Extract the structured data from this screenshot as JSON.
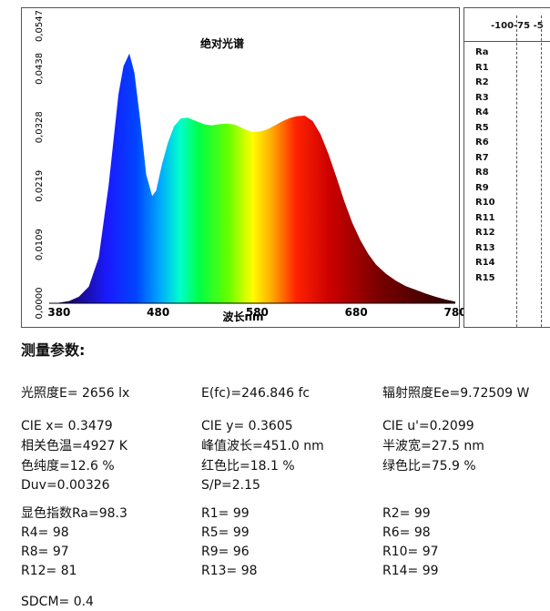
{
  "chart_data": {
    "type": "area",
    "title": "绝对光谱",
    "xlabel": "波长nm",
    "ylabel": "",
    "xlim": [
      370,
      780
    ],
    "ylim": [
      0,
      0.0547
    ],
    "x_ticks": [
      "380",
      "480",
      "580",
      "680",
      "780"
    ],
    "y_ticks": [
      "0,0000",
      "0,0109",
      "0,0219",
      "0,0328",
      "0,0438",
      "0,0547"
    ],
    "points": [
      [
        380,
        0.0001
      ],
      [
        390,
        0.0004
      ],
      [
        400,
        0.0012
      ],
      [
        410,
        0.0031
      ],
      [
        420,
        0.0085
      ],
      [
        430,
        0.022
      ],
      [
        440,
        0.039
      ],
      [
        445,
        0.0442
      ],
      [
        451,
        0.0466
      ],
      [
        456,
        0.043
      ],
      [
        462,
        0.034
      ],
      [
        468,
        0.024
      ],
      [
        474,
        0.02
      ],
      [
        478,
        0.021
      ],
      [
        484,
        0.026
      ],
      [
        490,
        0.03
      ],
      [
        496,
        0.033
      ],
      [
        503,
        0.0345
      ],
      [
        510,
        0.0346
      ],
      [
        518,
        0.034
      ],
      [
        526,
        0.0334
      ],
      [
        534,
        0.0332
      ],
      [
        542,
        0.0334
      ],
      [
        550,
        0.0335
      ],
      [
        558,
        0.0333
      ],
      [
        566,
        0.0326
      ],
      [
        574,
        0.032
      ],
      [
        582,
        0.032
      ],
      [
        590,
        0.0324
      ],
      [
        598,
        0.0332
      ],
      [
        606,
        0.034
      ],
      [
        614,
        0.0346
      ],
      [
        620,
        0.0349
      ],
      [
        628,
        0.035
      ],
      [
        636,
        0.034
      ],
      [
        644,
        0.0315
      ],
      [
        652,
        0.0278
      ],
      [
        660,
        0.0235
      ],
      [
        668,
        0.019
      ],
      [
        676,
        0.015
      ],
      [
        684,
        0.0118
      ],
      [
        692,
        0.0092
      ],
      [
        700,
        0.0072
      ],
      [
        710,
        0.0055
      ],
      [
        720,
        0.0042
      ],
      [
        730,
        0.0032
      ],
      [
        740,
        0.0025
      ],
      [
        750,
        0.0018
      ],
      [
        760,
        0.0012
      ],
      [
        770,
        0.0007
      ],
      [
        780,
        0.0003
      ]
    ]
  },
  "cri_panel": {
    "axis_top_labels": "-100-75  -5",
    "row_labels": [
      "Ra",
      "R1",
      "R2",
      "R3",
      "R4",
      "R5",
      "R6",
      "R7",
      "R8",
      "R9",
      "R10",
      "R11",
      "R12",
      "R13",
      "R14",
      "R15"
    ]
  },
  "section_title": "测量参数:",
  "params": {
    "illuminance": "光照度E=  2656 lx",
    "fc": "E(fc)=246.846 fc",
    "irradiance": "辐射照度Ee=9.72509 W",
    "cie_x": "CIE x= 0.3479",
    "cie_y": "CIE y= 0.3605",
    "cie_u": "CIE u'=0.2099",
    "cct": "相关色温=4927 K",
    "peak": "峰值波长=451.0 nm",
    "half_width": "半波宽=27.5 nm",
    "purity": "色纯度=12.6 %",
    "red_ratio": "红色比=18.1 %",
    "green_ratio": "绿色比=75.9 %",
    "duv": "Duv=0.00326",
    "sp": "S/P=2.15",
    "ra": "显色指数Ra=98.3",
    "r1": "R1= 99",
    "r2": "R2= 99",
    "r4": "R4= 98",
    "r5": "R5= 99",
    "r6": "R6= 98",
    "r8": "R8= 97",
    "r9": "R9= 96",
    "r10": "R10= 97",
    "r12": "R12= 81",
    "r13": "R13= 98",
    "r14": "R14= 99",
    "sdcm": "SDCM= 0.4"
  }
}
